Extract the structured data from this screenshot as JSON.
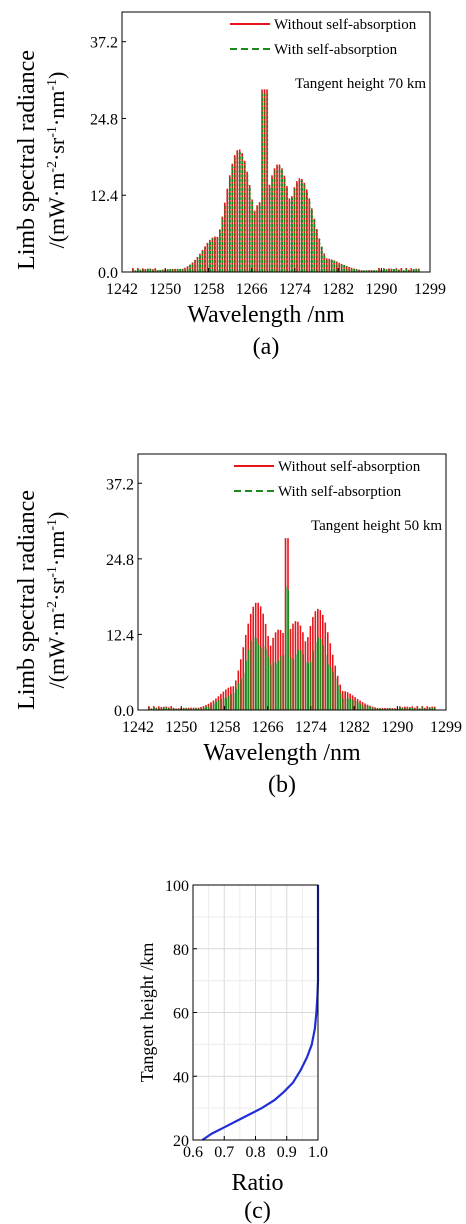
{
  "chart_data": [
    {
      "panel_label": "(a)",
      "type": "line",
      "title": "",
      "xlabel": "Wavelength /nm",
      "ylabel_line1": "Limb spectral radiance",
      "ylabel_line2": "/(mW·m",
      "ylabel_unit_parts": [
        {
          "text": "/(mW·m",
          "sup": false
        },
        {
          "text": "-2",
          "sup": true
        },
        {
          "text": "·sr",
          "sup": false
        },
        {
          "text": "-1",
          "sup": true
        },
        {
          "text": "·nm",
          "sup": false
        },
        {
          "text": "-1",
          "sup": true
        },
        {
          "text": ")",
          "sup": false
        }
      ],
      "annotation": "Tangent height 70 km",
      "xlim": [
        1242,
        1299
      ],
      "ylim": [
        0,
        42
      ],
      "xticks": [
        1242,
        1250,
        1258,
        1266,
        1274,
        1282,
        1290,
        1299
      ],
      "yticks": [
        "0.0",
        "12.4",
        "24.8",
        "37.2"
      ],
      "ytick_values": [
        0,
        12.4,
        24.8,
        37.2
      ],
      "legend_position": "top-right",
      "peak_wavelength": 1268.5,
      "peak_value": 29.5,
      "series": [
        {
          "name": "Without self-absorption",
          "color": "#e8141b",
          "style": "solid",
          "scale": 1.0
        },
        {
          "name": "With self-absorption",
          "color": "#1c8a1c",
          "style": "dashed",
          "scale": 0.98
        }
      ]
    },
    {
      "panel_label": "(b)",
      "type": "line",
      "title": "",
      "xlabel": "Wavelength /nm",
      "ylabel_line1": "Limb spectral radiance",
      "ylabel_line2": "/(mW·m",
      "ylabel_unit_parts": [
        {
          "text": "/(mW·m",
          "sup": false
        },
        {
          "text": "-2",
          "sup": true
        },
        {
          "text": "·sr",
          "sup": false
        },
        {
          "text": "-1",
          "sup": true
        },
        {
          "text": "·nm",
          "sup": false
        },
        {
          "text": "-1",
          "sup": true
        },
        {
          "text": ")",
          "sup": false
        }
      ],
      "annotation": "Tangent height 50 km",
      "xlim": [
        1242,
        1299
      ],
      "ylim": [
        0,
        42
      ],
      "xticks": [
        1242,
        1250,
        1258,
        1266,
        1274,
        1282,
        1290,
        1299
      ],
      "yticks": [
        "0.0",
        "12.4",
        "24.8",
        "37.2"
      ],
      "ytick_values": [
        0,
        12.4,
        24.8,
        37.2
      ],
      "legend_position": "top-right",
      "peak_wavelength": 1269.5,
      "peak_value": 28.2,
      "series": [
        {
          "name": "Without self-absorption",
          "color": "#e8141b",
          "style": "solid",
          "scale": 1.0
        },
        {
          "name": "With self-absorption",
          "color": "#1c8a1c",
          "style": "dashed",
          "scale": 0.72
        }
      ]
    },
    {
      "panel_label": "(c)",
      "type": "line",
      "title": "",
      "xlabel": "Ratio",
      "ylabel": "Tangent height /km",
      "xlim": [
        0.6,
        1.0
      ],
      "ylim": [
        20,
        100
      ],
      "xticks": [
        "0.6",
        "0.7",
        "0.8",
        "0.9",
        "1.0"
      ],
      "xtick_values": [
        0.6,
        0.7,
        0.8,
        0.9,
        1.0
      ],
      "yticks": [
        "20",
        "40",
        "60",
        "80",
        "100"
      ],
      "ytick_values": [
        20,
        40,
        60,
        80,
        100
      ],
      "grid": true,
      "series": [
        {
          "color": "#1f2fd6",
          "points": [
            [
              0.63,
              20
            ],
            [
              0.66,
              22
            ],
            [
              0.7,
              24
            ],
            [
              0.74,
              26
            ],
            [
              0.78,
              28
            ],
            [
              0.82,
              30
            ],
            [
              0.86,
              32.5
            ],
            [
              0.89,
              35
            ],
            [
              0.92,
              38
            ],
            [
              0.945,
              42
            ],
            [
              0.965,
              46
            ],
            [
              0.98,
              50
            ],
            [
              0.99,
              55
            ],
            [
              0.995,
              60
            ],
            [
              0.998,
              65
            ],
            [
              1.0,
              70
            ],
            [
              1.0,
              80
            ],
            [
              1.0,
              90
            ],
            [
              1.0,
              100
            ]
          ]
        }
      ]
    }
  ]
}
